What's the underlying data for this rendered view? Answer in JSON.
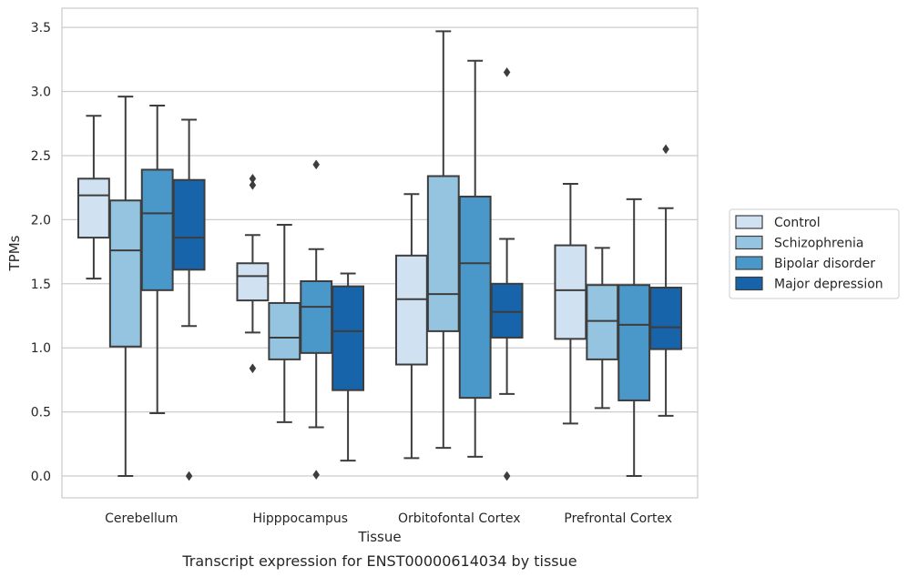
{
  "caption": "Transcript expression for ENST00000614034 by tissue",
  "chart_data": {
    "type": "boxplot",
    "xlabel": "Tissue",
    "ylabel": "TPMs",
    "ylim": [
      -0.17,
      3.65
    ],
    "yticks": [
      "0.0",
      "0.5",
      "1.0",
      "1.5",
      "2.0",
      "2.5",
      "3.0",
      "3.5"
    ],
    "grid": "horizontal",
    "legend_position": "right",
    "categories": [
      "Cerebellum",
      "Hipppocampus",
      "Orbitofontal Cortex",
      "Prefrontal Cortex"
    ],
    "series": [
      {
        "name": "Control",
        "color": "#d0e1f2",
        "boxes": [
          {
            "whislo": 1.54,
            "q1": 1.86,
            "med": 2.19,
            "q3": 2.32,
            "whishi": 2.81,
            "fliers": []
          },
          {
            "whislo": 1.12,
            "q1": 1.37,
            "med": 1.56,
            "q3": 1.66,
            "whishi": 1.88,
            "fliers": [
              2.32,
              2.27,
              0.84
            ]
          },
          {
            "whislo": 0.14,
            "q1": 0.87,
            "med": 1.38,
            "q3": 1.72,
            "whishi": 2.2,
            "fliers": []
          },
          {
            "whislo": 0.41,
            "q1": 1.07,
            "med": 1.45,
            "q3": 1.8,
            "whishi": 2.28,
            "fliers": []
          }
        ]
      },
      {
        "name": "Schizophrenia",
        "color": "#94c4df",
        "boxes": [
          {
            "whislo": 0.0,
            "q1": 1.01,
            "med": 1.76,
            "q3": 2.15,
            "whishi": 2.96,
            "fliers": []
          },
          {
            "whislo": 0.42,
            "q1": 0.91,
            "med": 1.08,
            "q3": 1.35,
            "whishi": 1.96,
            "fliers": []
          },
          {
            "whislo": 0.22,
            "q1": 1.13,
            "med": 1.42,
            "q3": 2.34,
            "whishi": 3.47,
            "fliers": []
          },
          {
            "whislo": 0.53,
            "q1": 0.91,
            "med": 1.21,
            "q3": 1.49,
            "whishi": 1.78,
            "fliers": []
          }
        ]
      },
      {
        "name": "Bipolar disorder",
        "color": "#4a98c9",
        "boxes": [
          {
            "whislo": 0.49,
            "q1": 1.45,
            "med": 2.05,
            "q3": 2.39,
            "whishi": 2.89,
            "fliers": []
          },
          {
            "whislo": 0.38,
            "q1": 0.96,
            "med": 1.32,
            "q3": 1.52,
            "whishi": 1.77,
            "fliers": [
              2.43,
              0.01
            ]
          },
          {
            "whislo": 0.15,
            "q1": 0.61,
            "med": 1.66,
            "q3": 2.18,
            "whishi": 3.24,
            "fliers": []
          },
          {
            "whislo": 0.0,
            "q1": 0.59,
            "med": 1.18,
            "q3": 1.49,
            "whishi": 2.16,
            "fliers": []
          }
        ]
      },
      {
        "name": "Major depression",
        "color": "#1764ab",
        "boxes": [
          {
            "whislo": 1.17,
            "q1": 1.61,
            "med": 1.86,
            "q3": 2.31,
            "whishi": 2.78,
            "fliers": [
              0.0
            ]
          },
          {
            "whislo": 0.12,
            "q1": 0.67,
            "med": 1.13,
            "q3": 1.48,
            "whishi": 1.58,
            "fliers": []
          },
          {
            "whislo": 0.64,
            "q1": 1.08,
            "med": 1.28,
            "q3": 1.5,
            "whishi": 1.85,
            "fliers": [
              3.15,
              0.0
            ]
          },
          {
            "whislo": 0.47,
            "q1": 0.99,
            "med": 1.16,
            "q3": 1.47,
            "whishi": 2.09,
            "fliers": [
              2.55
            ]
          }
        ]
      }
    ]
  }
}
